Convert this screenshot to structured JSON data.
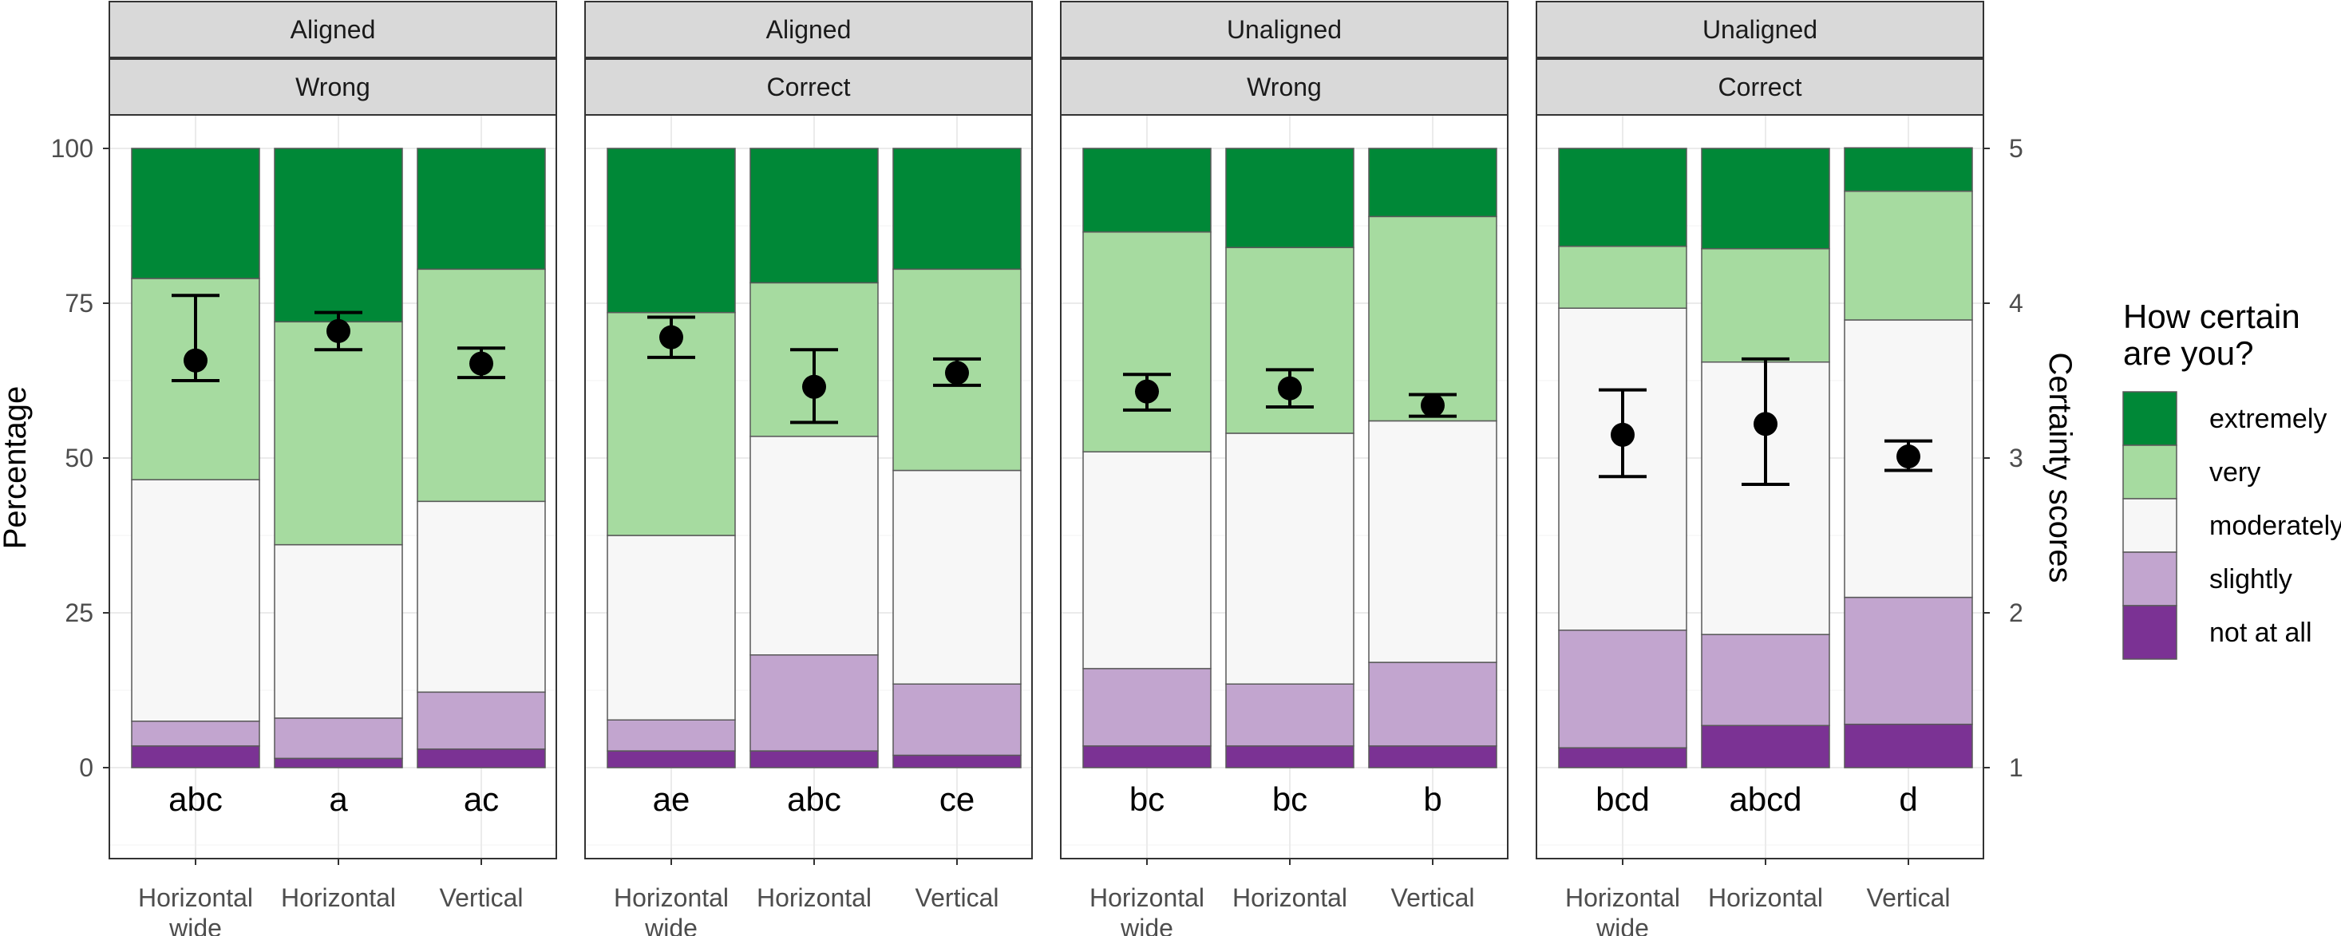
{
  "chart_data": {
    "type": "bar",
    "subtype": "stacked-percent-with-mean-errorbars",
    "ylabel": "Percentage",
    "ylabel_right": "Certainty scores",
    "yticks": [
      "0",
      "25",
      "50",
      "75",
      "100"
    ],
    "yticks_right": [
      "1",
      "2",
      "3",
      "4",
      "5"
    ],
    "ylim": [
      0,
      100
    ],
    "ylim_right": [
      1,
      5
    ],
    "grid": true,
    "legend": {
      "title": [
        "How certain",
        "are you?"
      ],
      "placement": "right",
      "items": [
        {
          "key": "extremely",
          "label": "extremely",
          "color": "#008837"
        },
        {
          "key": "very",
          "label": "very",
          "color": "#a6dba0"
        },
        {
          "key": "moderately",
          "label": "moderately",
          "color": "#f7f7f7"
        },
        {
          "key": "slightly",
          "label": "slightly",
          "color": "#c2a5cf"
        },
        {
          "key": "not_at_all",
          "label": "not at all",
          "color": "#7b3294"
        }
      ]
    },
    "stack_order_bottom_to_top": [
      "not_at_all",
      "slightly",
      "moderately",
      "very",
      "extremely"
    ],
    "facets": [
      {
        "strip_top": "Aligned",
        "strip_bottom": "Wrong",
        "bars": [
          {
            "x_label": [
              "Horizontal",
              "wide"
            ],
            "letters": "abc",
            "segments": {
              "not_at_all": 3.5,
              "slightly": 4,
              "moderately": 39,
              "very": 32.5,
              "extremely": 21
            },
            "mean": 3.63,
            "err_low": 3.5,
            "err_high": 4.05
          },
          {
            "x_label": [
              "Horizontal"
            ],
            "letters": "a",
            "segments": {
              "not_at_all": 1.5,
              "slightly": 6.5,
              "moderately": 28,
              "very": 36,
              "extremely": 28
            },
            "mean": 3.82,
            "err_low": 3.7,
            "err_high": 3.94
          },
          {
            "x_label": [
              "Vertical"
            ],
            "letters": "ac",
            "segments": {
              "not_at_all": 3,
              "slightly": 9.2,
              "moderately": 30.8,
              "very": 37.5,
              "extremely": 19.5
            },
            "mean": 3.61,
            "err_low": 3.52,
            "err_high": 3.71
          }
        ]
      },
      {
        "strip_top": "Aligned",
        "strip_bottom": "Correct",
        "bars": [
          {
            "x_label": [
              "Horizontal",
              "wide"
            ],
            "letters": "ae",
            "segments": {
              "not_at_all": 2.7,
              "slightly": 5,
              "moderately": 29.8,
              "very": 36,
              "extremely": 26.5
            },
            "mean": 3.78,
            "err_low": 3.65,
            "err_high": 3.91
          },
          {
            "x_label": [
              "Horizontal"
            ],
            "letters": "abc",
            "segments": {
              "not_at_all": 2.7,
              "slightly": 15.5,
              "moderately": 35.3,
              "very": 24.8,
              "extremely": 21.7
            },
            "mean": 3.46,
            "err_low": 3.23,
            "err_high": 3.7
          },
          {
            "x_label": [
              "Vertical"
            ],
            "letters": "ce",
            "segments": {
              "not_at_all": 2,
              "slightly": 11.5,
              "moderately": 34.5,
              "very": 32.5,
              "extremely": 19.5
            },
            "mean": 3.55,
            "err_low": 3.47,
            "err_high": 3.64
          }
        ]
      },
      {
        "strip_top": "Unaligned",
        "strip_bottom": "Wrong",
        "bars": [
          {
            "x_label": [
              "Horizontal",
              "wide"
            ],
            "letters": "bc",
            "segments": {
              "not_at_all": 3.5,
              "slightly": 12.5,
              "moderately": 35,
              "very": 35.5,
              "extremely": 13.5
            },
            "mean": 3.43,
            "err_low": 3.31,
            "err_high": 3.54
          },
          {
            "x_label": [
              "Horizontal"
            ],
            "letters": "bc",
            "segments": {
              "not_at_all": 3.5,
              "slightly": 10,
              "moderately": 40.5,
              "very": 30,
              "extremely": 16
            },
            "mean": 3.45,
            "err_low": 3.33,
            "err_high": 3.57
          },
          {
            "x_label": [
              "Vertical"
            ],
            "letters": "b",
            "segments": {
              "not_at_all": 3.5,
              "slightly": 13.5,
              "moderately": 39,
              "very": 33,
              "extremely": 11
            },
            "mean": 3.34,
            "err_low": 3.27,
            "err_high": 3.41
          }
        ]
      },
      {
        "strip_top": "Unaligned",
        "strip_bottom": "Correct",
        "bars": [
          {
            "x_label": [
              "Horizontal",
              "wide"
            ],
            "letters": "bcd",
            "segments": {
              "not_at_all": 3.2,
              "slightly": 19,
              "moderately": 52,
              "very": 10,
              "extremely": 15.8
            },
            "mean": 3.15,
            "err_low": 2.88,
            "err_high": 3.44
          },
          {
            "x_label": [
              "Horizontal"
            ],
            "letters": "abcd",
            "segments": {
              "not_at_all": 6.8,
              "slightly": 14.7,
              "moderately": 44,
              "very": 18.3,
              "extremely": 16.2
            },
            "mean": 3.22,
            "err_low": 2.83,
            "err_high": 3.64
          },
          {
            "x_label": [
              "Vertical"
            ],
            "letters": "d",
            "segments": {
              "not_at_all": 7,
              "slightly": 20.5,
              "moderately": 44.8,
              "very": 20.8,
              "extremely": 7
            },
            "mean": 3.01,
            "err_low": 2.92,
            "err_high": 3.11
          }
        ]
      }
    ]
  }
}
